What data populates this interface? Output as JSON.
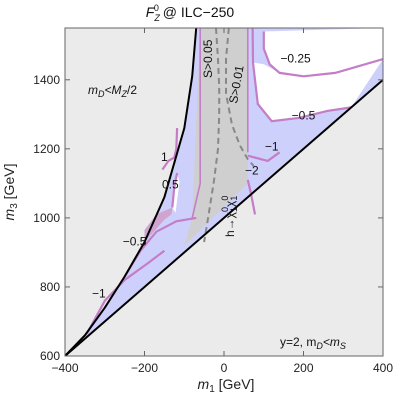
{
  "chart_data": {
    "type": "contour",
    "title": "F_Z^0 @ ILC−250",
    "title_main": "F",
    "title_sub": "Z",
    "title_sup": "0",
    "title_rest": " @ ILC−250",
    "xlabel_var": "m",
    "xlabel_sub": "1",
    "xlabel_unit": " [GeV]",
    "ylabel_var": "m",
    "ylabel_sub": "3",
    "ylabel_unit": " [GeV]",
    "xlim": [
      -400,
      400
    ],
    "ylim": [
      600,
      1550
    ],
    "xticks": [
      -400,
      -200,
      0,
      200,
      400
    ],
    "yticks": [
      600,
      800,
      1000,
      1200,
      1400
    ],
    "xtick_labels": [
      "−400",
      "−200",
      "0",
      "200",
      "400"
    ],
    "ytick_labels": [
      "600",
      "800",
      "1000",
      "1200",
      "1400"
    ],
    "colors": {
      "excluded": "#ebebeb",
      "allowed": "#cdd0fa",
      "higgs_band": "#cfcfcf",
      "contour": "#c47dc7",
      "magenta_patch": "#cfa4cf",
      "dashed": "#888888",
      "boundary": "#000000"
    },
    "boundary_lower": {
      "x": [
        -400,
        400
      ],
      "y": [
        600,
        1400
      ]
    },
    "boundary_left": {
      "x": [
        -400,
        -350,
        -300,
        -250,
        -200,
        -150,
        -100,
        -80,
        -70
      ],
      "y": [
        600,
        660,
        740,
        830,
        930,
        1060,
        1260,
        1410,
        1550
      ]
    },
    "higgs_band": {
      "x_min": -60,
      "x_max": 60,
      "label_main": "h→χ",
      "label_sub": "1",
      "label_sup": "0",
      "label_mid": "χ"
    },
    "dashed_curves": [
      {
        "label": "S>0.05",
        "x": [
          -20,
          -15,
          -12,
          -12,
          -15,
          -25,
          -40,
          -50
        ],
        "y": [
          1550,
          1460,
          1380,
          1300,
          1200,
          1110,
          1000,
          930
        ]
      },
      {
        "label": "S>0.01",
        "x": [
          12,
          5,
          5,
          20,
          40,
          60,
          75
        ],
        "y": [
          1550,
          1460,
          1360,
          1270,
          1210,
          1170,
          1150
        ]
      }
    ],
    "contours": [
      {
        "label": "−0.25",
        "x": [
          100,
          100,
          115,
          140,
          200,
          280,
          400
        ],
        "y": [
          1540,
          1490,
          1445,
          1420,
          1410,
          1420,
          1460
        ]
      },
      {
        "label": "−0.5",
        "x": [
          72,
          73,
          85,
          120,
          190,
          260,
          320
        ],
        "y": [
          1550,
          1450,
          1330,
          1280,
          1290,
          1310,
          1320
        ]
      },
      {
        "label": "−1",
        "x": [
          60,
          110,
          140
        ],
        "y": [
          1180,
          1165,
          1190
        ]
      },
      {
        "label": "−2",
        "x": [
          60,
          68,
          78
        ],
        "y": [
          1110,
          1070,
          1010
        ]
      },
      {
        "label": "1",
        "x": [
          -155,
          -140,
          -125,
          -120,
          -118
        ],
        "y": [
          1140,
          1165,
          1175,
          1200,
          1260
        ]
      },
      {
        "label": "0.5",
        "x": [
          -130,
          -125,
          -118
        ],
        "y": [
          1030,
          1090,
          1130
        ]
      },
      {
        "label": "−0.5",
        "x": [
          -250,
          -210,
          -170,
          -120,
          -70
        ],
        "y": [
          830,
          905,
          960,
          990,
          1000
        ]
      },
      {
        "label": "−1",
        "x": [
          -345,
          -300,
          -250,
          -190,
          -150
        ],
        "y": [
          665,
          760,
          820,
          870,
          905
        ]
      }
    ],
    "annotations": {
      "md_mz": {
        "var": "m",
        "sub": "D",
        "mid": "<M",
        "sub2": "Z",
        "end": "/2"
      },
      "y2": {
        "text": "y=2, m",
        "sub": "D",
        "mid": "<m",
        "sub2": "S"
      },
      "s005": "S>0.05",
      "s001": "S>0.01"
    }
  }
}
